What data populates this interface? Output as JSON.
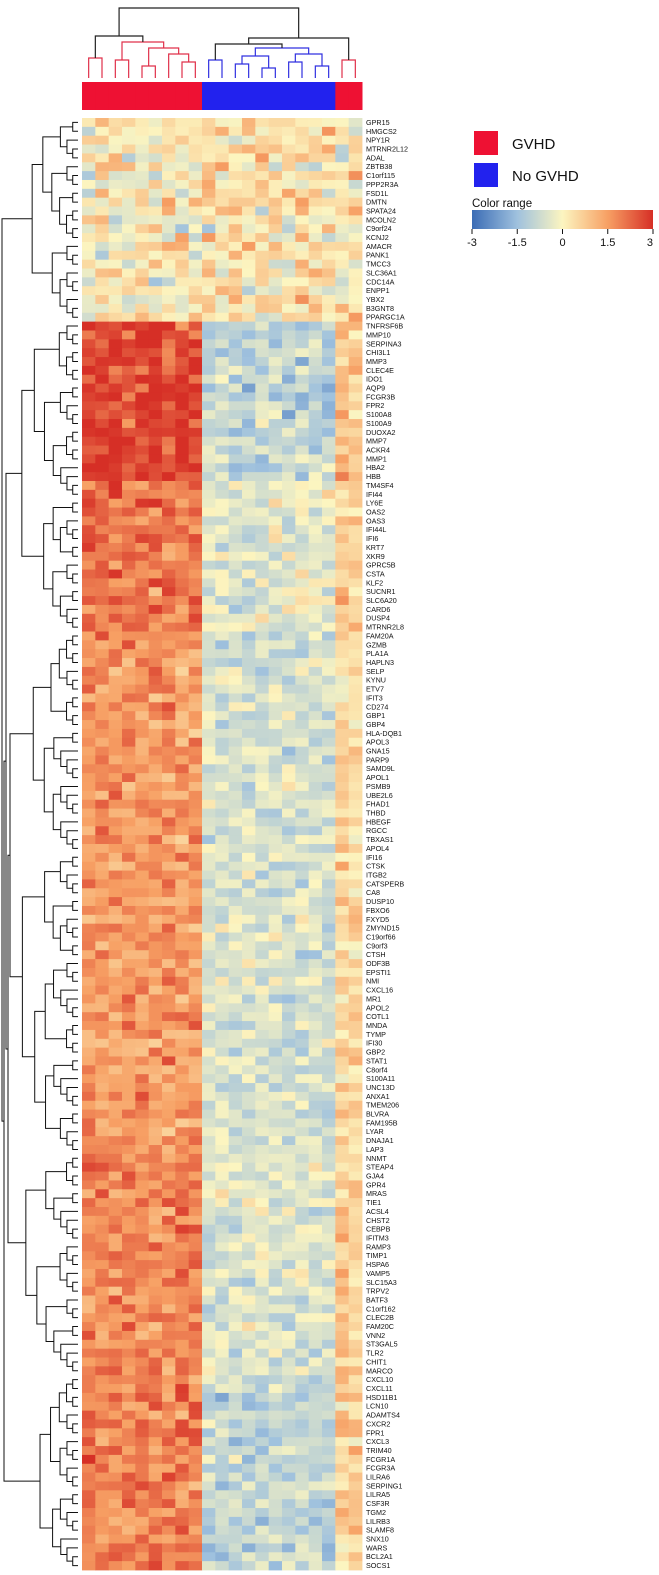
{
  "chart_data": {
    "type": "heatmap",
    "legend": {
      "groups": [
        {
          "label": "GVHD",
          "color": "#ee1133"
        },
        {
          "label": "No GVHD",
          "color": "#2222ee"
        }
      ]
    },
    "color_range": {
      "title": "Color range",
      "ticks": [
        "-3",
        "-1.5",
        "0",
        "1.5",
        "3"
      ],
      "min": -3,
      "max": 3,
      "colors": [
        "#3b6cb5",
        "#9fc1de",
        "#fcf5c0",
        "#f7a064",
        "#d62f26"
      ]
    },
    "samples": [
      "GVHD",
      "GVHD",
      "GVHD",
      "GVHD",
      "GVHD",
      "GVHD",
      "GVHD",
      "GVHD",
      "GVHD",
      "No GVHD",
      "No GVHD",
      "No GVHD",
      "No GVHD",
      "No GVHD",
      "No GVHD",
      "No GVHD",
      "No GVHD",
      "No GVHD",
      "No GVHD",
      "GVHD",
      "GVHD"
    ],
    "genes": [
      "GPR15",
      "HMGCS2",
      "NPY1R",
      "MTRNR2L12",
      "ADAL",
      "ZBTB38",
      "C1orf115",
      "PPP2R3A",
      "FSD1L",
      "DMTN",
      "SPATA24",
      "MCOLN2",
      "C9orf24",
      "KCNJ2",
      "AMACR",
      "PANK1",
      "TMCC3",
      "SLC36A1",
      "CDC14A",
      "ENPP1",
      "YBX2",
      "B3GNT8",
      "PPARGC1A",
      "TNFRSF6B",
      "MMP10",
      "SERPINA3",
      "CHI3L1",
      "MMP3",
      "CLEC4E",
      "IDO1",
      "AQP9",
      "FCGR3B",
      "FPR2",
      "S100A8",
      "S100A9",
      "DUOXA2",
      "MMP7",
      "ACKR4",
      "MMP1",
      "HBA2",
      "HBB",
      "TM4SF4",
      "IFI44",
      "LY6E",
      "OAS2",
      "OAS3",
      "IFI44L",
      "IFI6",
      "KRT7",
      "XKR9",
      "GPRC5B",
      "CSTA",
      "KLF2",
      "SUCNR1",
      "SLC6A20",
      "CARD6",
      "DUSP4",
      "MTRNR2L8",
      "FAM20A",
      "GZMB",
      "PLA1A",
      "HAPLN3",
      "SELP",
      "KYNU",
      "ETV7",
      "IFIT3",
      "CD274",
      "GBP1",
      "GBP4",
      "HLA-DQB1",
      "APOL3",
      "GNA15",
      "PARP9",
      "SAMD9L",
      "APOL1",
      "PSMB9",
      "UBE2L6",
      "FHAD1",
      "THBD",
      "HBEGF",
      "RGCC",
      "TBXAS1",
      "APOL4",
      "IFI16",
      "CTSK",
      "ITGB2",
      "CATSPERB",
      "CA8",
      "DUSP10",
      "FBXO6",
      "FXYD5",
      "ZMYND15",
      "C19orf66",
      "C9orf3",
      "CTSH",
      "ODF3B",
      "EPSTI1",
      "NMI",
      "CXCL16",
      "MR1",
      "APOL2",
      "COTL1",
      "MNDA",
      "TYMP",
      "IFI30",
      "GBP2",
      "STAT1",
      "C8orf4",
      "S100A11",
      "UNC13D",
      "ANXA1",
      "TMEM206",
      "BLVRA",
      "FAM195B",
      "LYAR",
      "DNAJA1",
      "LAP3",
      "NNMT",
      "STEAP4",
      "GJA4",
      "GPR4",
      "MRAS",
      "TIE1",
      "ACSL4",
      "CHST2",
      "CEBPB",
      "IFITM3",
      "RAMP3",
      "TIMP1",
      "HSPA6",
      "VAMP5",
      "SLC15A3",
      "TRPV2",
      "BATF3",
      "C1orf162",
      "CLEC2B",
      "FAM20C",
      "VNN2",
      "ST3GAL5",
      "TLR2",
      "CHIT1",
      "MARCO",
      "CXCL10",
      "CXCL11",
      "HSD11B1",
      "LCN10",
      "ADAMTS4",
      "CXCR2",
      "FPR1",
      "CXCL3",
      "TRIM40",
      "FCGR1A",
      "FCGR3A",
      "LILRA6",
      "SERPING1",
      "LILRA5",
      "CSF3R",
      "TGM2",
      "LILRB3",
      "SLAMF8",
      "SNX10",
      "WARS",
      "BCL2A1",
      "SOCS1"
    ]
  }
}
